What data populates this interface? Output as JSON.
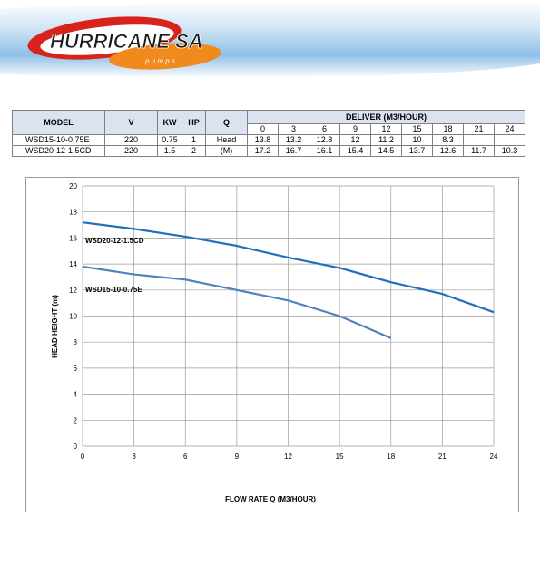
{
  "brand": {
    "name": "HURRICANE SA",
    "tagline": "p u m p s"
  },
  "colors": {
    "series1": "#4f81bd",
    "series2": "#1f6fbd",
    "header_bg": "#dbe3f0",
    "logo_red": "#d8231d",
    "logo_orange": "#f08a1c"
  },
  "table": {
    "headers": {
      "model": "MODEL",
      "v": "V",
      "kw": "KW",
      "hp": "HP",
      "q": "Q",
      "deliver": "DELIVER (M3/HOUR)"
    },
    "flows": [
      "0",
      "3",
      "6",
      "9",
      "12",
      "15",
      "18",
      "21",
      "24"
    ],
    "q_unit": [
      "Head",
      "(M)"
    ],
    "rows": [
      {
        "model": "WSD15-10-0.75E",
        "v": "220",
        "kw": "0.75",
        "hp": "1",
        "heads": [
          "13.8",
          "13.2",
          "12.8",
          "12",
          "11.2",
          "10",
          "8.3",
          "",
          ""
        ]
      },
      {
        "model": "WSD20-12-1.5CD",
        "v": "220",
        "kw": "1.5",
        "hp": "2",
        "heads": [
          "17.2",
          "16.7",
          "16.1",
          "15.4",
          "14.5",
          "13.7",
          "12.6",
          "11.7",
          "10.3"
        ]
      }
    ]
  },
  "chart_data": {
    "type": "line",
    "xlabel": "FLOW RATE Q (M3/HOUR)",
    "ylabel": "HEAD HEIGHT (m)",
    "xlim": [
      0,
      24
    ],
    "ylim": [
      0,
      20
    ],
    "xticks": [
      0,
      3,
      6,
      9,
      12,
      15,
      18,
      21,
      24
    ],
    "yticks": [
      0,
      2,
      4,
      6,
      8,
      10,
      12,
      14,
      16,
      18,
      20
    ],
    "grid": true,
    "series": [
      {
        "name": "WSD15-10-0.75E",
        "x": [
          0,
          3,
          6,
          9,
          12,
          15,
          18
        ],
        "y": [
          13.8,
          13.2,
          12.8,
          12,
          11.2,
          10,
          8.3
        ],
        "color": "#4f81bd"
      },
      {
        "name": "WSD20-12-1.5CD",
        "x": [
          0,
          3,
          6,
          9,
          12,
          15,
          18,
          21,
          24
        ],
        "y": [
          17.2,
          16.7,
          16.1,
          15.4,
          14.5,
          13.7,
          12.6,
          11.7,
          10.3
        ],
        "color": "#1f6fbd"
      }
    ]
  }
}
